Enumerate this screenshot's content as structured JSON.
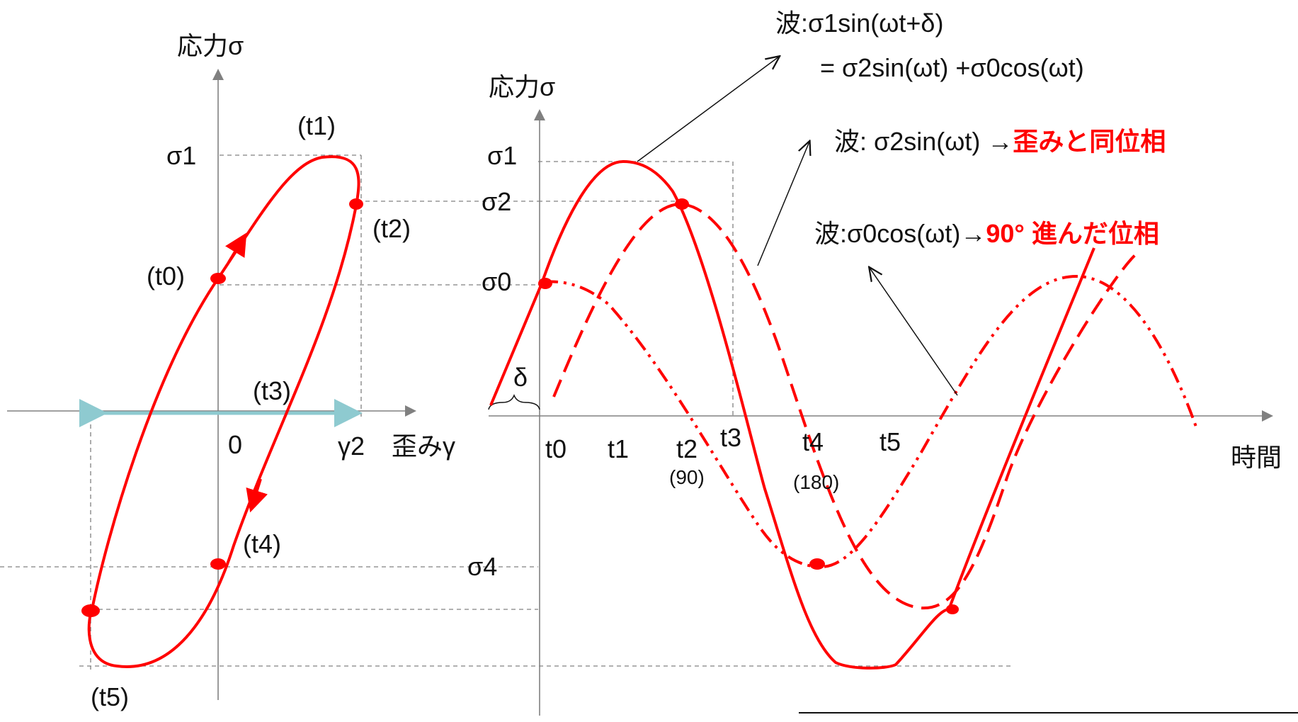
{
  "colors": {
    "curve": "#ff0000",
    "axis": "#808080",
    "guide": "#808080",
    "strain_arrow": "#8ecad0",
    "text": "#111111"
  },
  "left": {
    "y_axis_label": "応力σ",
    "x_axis_label": "歪みγ",
    "origin_label": "0",
    "sigma1": "σ1",
    "gamma2": "γ2",
    "t0": "(t0)",
    "t1": "(t1)",
    "t2": "(t2)",
    "t3": "(t3)",
    "t4": "(t4)",
    "t5": "(t5)"
  },
  "right": {
    "y_axis_label": "応力σ",
    "x_axis_label": "時間",
    "sigma1": "σ1",
    "sigma2": "σ2",
    "sigma0": "σ0",
    "sigma4": "σ4",
    "delta": "δ",
    "t0": "t0",
    "t1": "t1",
    "t2": "t2",
    "t3": "t3",
    "t4": "t4",
    "t5": "t5",
    "deg90": "(90)",
    "deg180": "(180)"
  },
  "annotations": {
    "wave_total_prefix": "波",
    "wave_total_line1": ":σ1sin(ωt+δ)",
    "wave_total_line2": "= σ2sin(ωt) +σ0cos(ωt)",
    "wave_sin_prefix": "波",
    "wave_sin_text": ":  σ2sin(ωt) →",
    "wave_sin_red": "歪みと同位相",
    "wave_cos_prefix": "波",
    "wave_cos_text": ":σ0cos(ωt)→",
    "wave_cos_red_num": "90°",
    "wave_cos_red_text": "進んだ位相"
  }
}
